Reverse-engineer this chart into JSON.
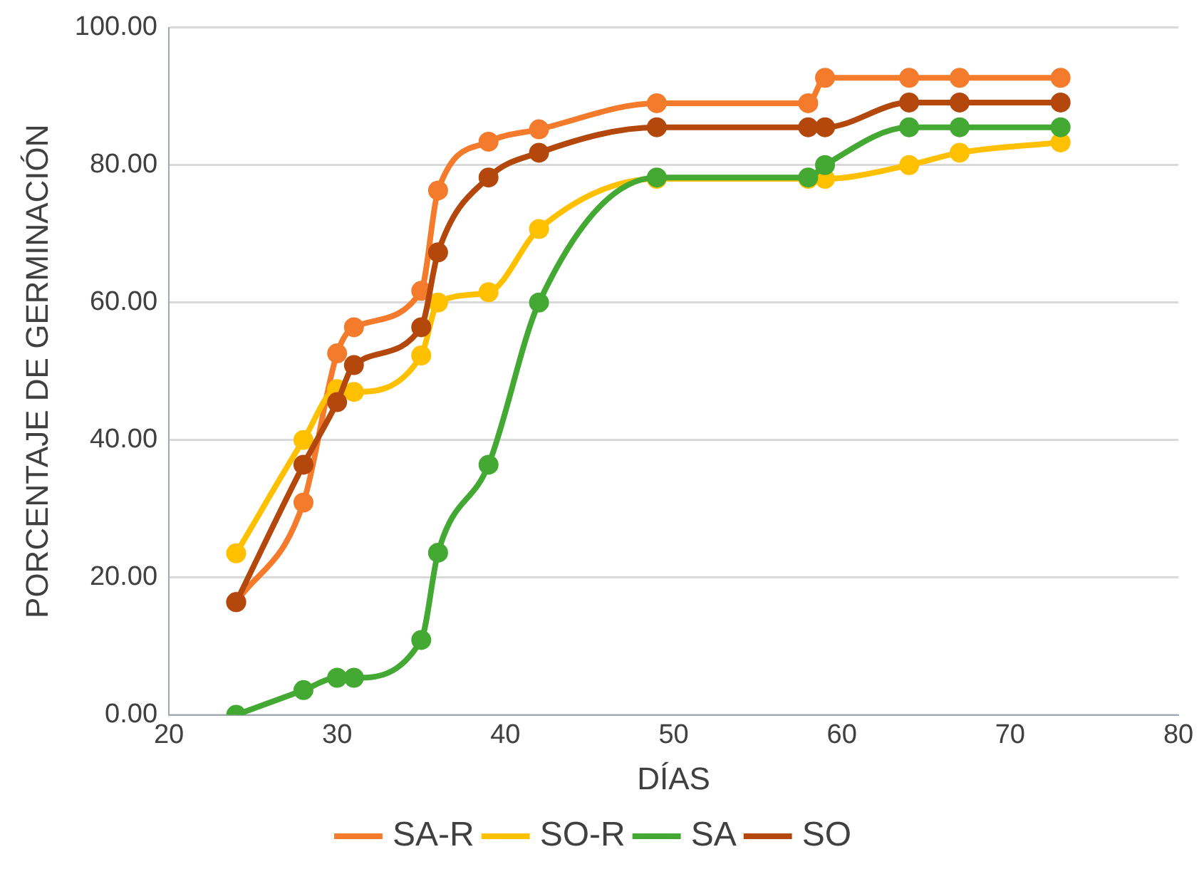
{
  "chart_data": {
    "type": "line",
    "xlabel": "DÍAS",
    "ylabel": "PORCENTAJE DE GERMINACIÓN",
    "x": [
      24,
      28,
      30,
      31,
      35,
      36,
      39,
      42,
      49,
      58,
      59,
      64,
      67,
      73
    ],
    "series": [
      {
        "name": "SA-R",
        "color": "#f47b2c",
        "values": [
          16.4,
          30.9,
          52.6,
          56.4,
          61.7,
          76.3,
          83.4,
          85.2,
          89.0,
          89.0,
          92.7,
          92.7,
          92.7,
          92.7
        ]
      },
      {
        "name": "SO-R",
        "color": "#ffc000",
        "values": [
          23.5,
          40.0,
          47.4,
          47.0,
          52.3,
          60.0,
          61.5,
          70.7,
          78.0,
          78.0,
          78.0,
          80.0,
          81.8,
          83.3
        ]
      },
      {
        "name": "SA",
        "color": "#43a933",
        "values": [
          0,
          3.6,
          5.4,
          5.4,
          10.9,
          23.6,
          36.4,
          60.0,
          78.2,
          78.2,
          80.0,
          85.5,
          85.5,
          85.5
        ]
      },
      {
        "name": "SO",
        "color": "#b3470c",
        "values": [
          16.4,
          36.4,
          45.5,
          50.9,
          56.4,
          67.3,
          78.2,
          81.8,
          85.5,
          85.5,
          85.5,
          89.1,
          89.1,
          89.1
        ]
      }
    ],
    "xlim": [
      20,
      80
    ],
    "xticks": [
      20,
      30,
      40,
      50,
      60,
      70,
      80
    ],
    "ylim": [
      0,
      100
    ],
    "yticks": [
      {
        "value": 0,
        "label": "0.00"
      },
      {
        "value": 20,
        "label": "20.00"
      },
      {
        "value": 40,
        "label": "40.00"
      },
      {
        "value": 60,
        "label": "60.00"
      },
      {
        "value": 80,
        "label": "80.00"
      },
      {
        "value": 100,
        "label": "100.00"
      }
    ],
    "grid": "y",
    "legend": "bottom",
    "marker": "circle",
    "line_style": "solid"
  }
}
